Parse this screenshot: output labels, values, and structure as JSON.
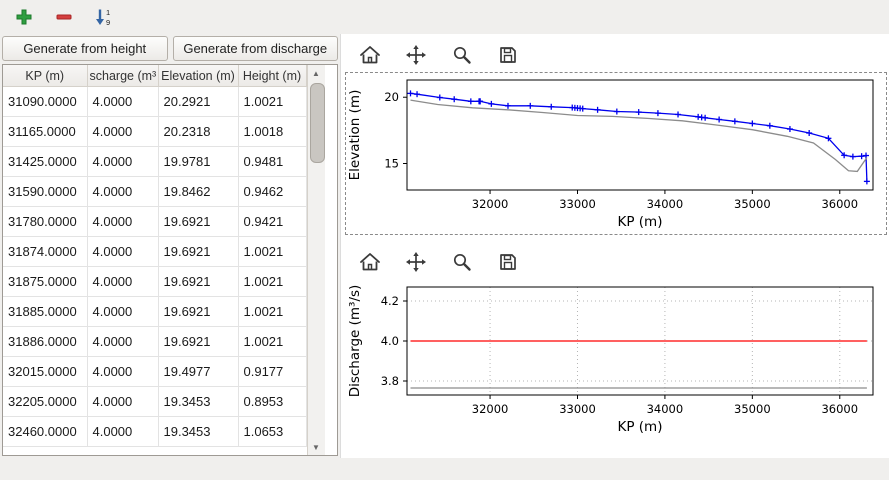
{
  "toolbar": {
    "icons": [
      {
        "name": "add-row-icon",
        "glyph": "plus",
        "color": "#2e9e40"
      },
      {
        "name": "remove-row-icon",
        "glyph": "minus",
        "color": "#d43f3f"
      },
      {
        "name": "sort-ascending-icon",
        "glyph": "arrow-down-1-9",
        "color": "#3465a4"
      }
    ]
  },
  "buttons": {
    "generate_height": "Generate from height",
    "generate_discharge": "Generate from discharge"
  },
  "table": {
    "headers": [
      "KP (m)",
      "scharge (m³",
      "Elevation (m)",
      "Height (m)"
    ],
    "rows": [
      [
        "31090.0000",
        "4.0000",
        "20.2921",
        "1.0021"
      ],
      [
        "31165.0000",
        "4.0000",
        "20.2318",
        "1.0018"
      ],
      [
        "31425.0000",
        "4.0000",
        "19.9781",
        "0.9481"
      ],
      [
        "31590.0000",
        "4.0000",
        "19.8462",
        "0.9462"
      ],
      [
        "31780.0000",
        "4.0000",
        "19.6921",
        "0.9421"
      ],
      [
        "31874.0000",
        "4.0000",
        "19.6921",
        "1.0021"
      ],
      [
        "31875.0000",
        "4.0000",
        "19.6921",
        "1.0021"
      ],
      [
        "31885.0000",
        "4.0000",
        "19.6921",
        "1.0021"
      ],
      [
        "31886.0000",
        "4.0000",
        "19.6921",
        "1.0021"
      ],
      [
        "32015.0000",
        "4.0000",
        "19.4977",
        "0.9177"
      ],
      [
        "32205.0000",
        "4.0000",
        "19.3453",
        "0.8953"
      ],
      [
        "32460.0000",
        "4.0000",
        "19.3453",
        "1.0653"
      ]
    ]
  },
  "plot_toolbar_icons": [
    "home-icon",
    "pan-icon",
    "zoom-icon",
    "save-icon"
  ],
  "chart_data": [
    {
      "type": "line",
      "title": "",
      "xlabel": "KP (m)",
      "ylabel": "Elevation (m)",
      "xlim": [
        31050,
        36380
      ],
      "ylim": [
        13.0,
        21.3
      ],
      "xticks": [
        32000,
        33000,
        34000,
        35000,
        36000
      ],
      "xticklabels": [
        "32000",
        "33000",
        "34000",
        "35000",
        "36000"
      ],
      "yticks": [
        15,
        20
      ],
      "yticklabels": [
        "15",
        "20"
      ],
      "grid": false,
      "legend": "none",
      "series": [
        {
          "name": "water-elevation",
          "color": "#0000ee",
          "marker": "+",
          "x": [
            31090,
            31165,
            31425,
            31590,
            31780,
            31874,
            31885,
            31886,
            32015,
            32205,
            32460,
            32700,
            32940,
            32970,
            33000,
            33030,
            33060,
            33230,
            33450,
            33700,
            33920,
            34150,
            34380,
            34420,
            34460,
            34620,
            34800,
            35000,
            35200,
            35430,
            35650,
            35870,
            36050,
            36150,
            36250,
            36300,
            36310
          ],
          "y": [
            20.29,
            20.23,
            19.98,
            19.85,
            19.69,
            19.69,
            19.69,
            19.69,
            19.5,
            19.35,
            19.35,
            19.28,
            19.22,
            19.2,
            19.18,
            19.16,
            19.14,
            19.05,
            18.92,
            18.88,
            18.8,
            18.7,
            18.52,
            18.48,
            18.45,
            18.32,
            18.18,
            18.02,
            17.85,
            17.6,
            17.3,
            16.9,
            15.62,
            15.52,
            15.55,
            15.6,
            13.65
          ]
        },
        {
          "name": "bottom-profile",
          "color": "#8c8c8c",
          "marker": "",
          "x": [
            31090,
            31400,
            31800,
            32200,
            32600,
            33000,
            33400,
            33800,
            34200,
            34600,
            35000,
            35400,
            35700,
            35950,
            36100,
            36200,
            36310
          ],
          "y": [
            19.78,
            19.45,
            19.2,
            19.05,
            18.85,
            18.62,
            18.55,
            18.4,
            18.22,
            17.9,
            17.55,
            17.05,
            16.55,
            15.3,
            14.45,
            14.4,
            15.45
          ]
        }
      ]
    },
    {
      "type": "line",
      "title": "",
      "xlabel": "KP (m)",
      "ylabel": "Discharge (m³/s)",
      "xlim": [
        31050,
        36380
      ],
      "ylim": [
        3.73,
        4.27
      ],
      "xticks": [
        32000,
        33000,
        34000,
        35000,
        36000
      ],
      "xticklabels": [
        "32000",
        "33000",
        "34000",
        "35000",
        "36000"
      ],
      "yticks": [
        3.8,
        4.0,
        4.2
      ],
      "yticklabels": [
        "3.8",
        "4.0",
        "4.2"
      ],
      "grid": true,
      "legend": "none",
      "series": [
        {
          "name": "discharge",
          "color": "#ff0000",
          "marker": "",
          "x": [
            31090,
            36310
          ],
          "y": [
            4.0,
            4.0
          ]
        },
        {
          "name": "baseline",
          "color": "#8c8c8c",
          "marker": "",
          "x": [
            31090,
            36310
          ],
          "y": [
            3.765,
            3.765
          ]
        }
      ]
    }
  ]
}
